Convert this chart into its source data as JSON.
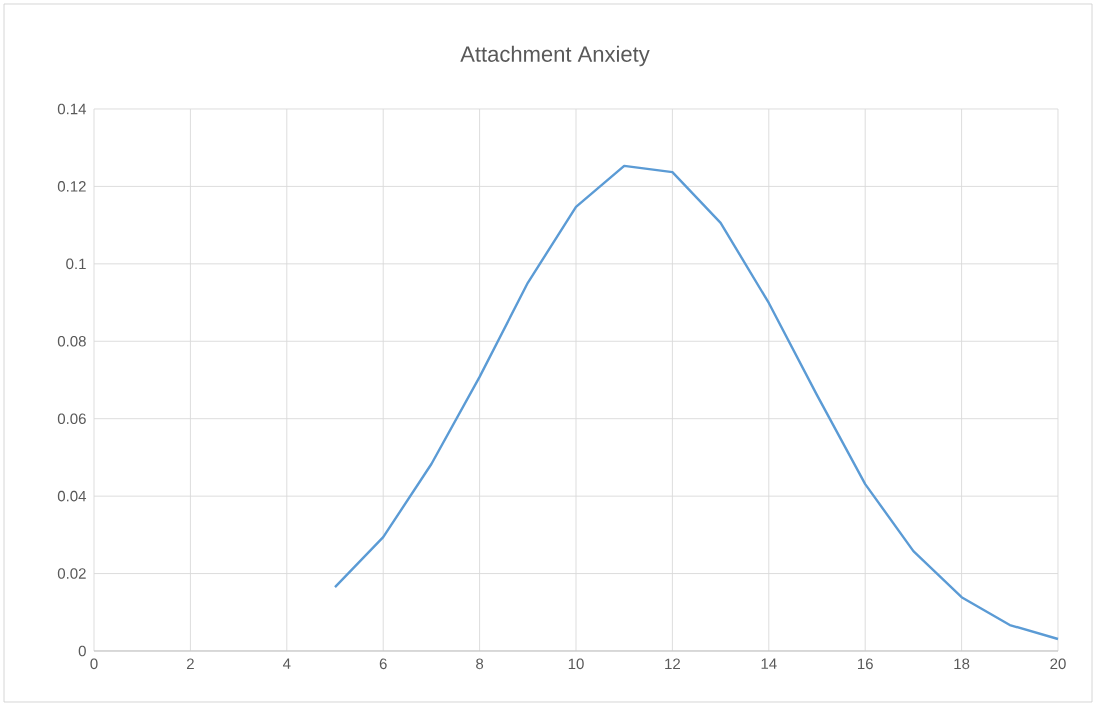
{
  "chart_data": {
    "type": "line",
    "title": "Attachment Anxiety",
    "x": [
      5,
      6,
      7,
      8,
      9,
      10,
      11,
      12,
      13,
      14,
      15,
      16,
      17,
      18,
      19,
      20
    ],
    "values": [
      0.0165,
      0.0294,
      0.0483,
      0.0708,
      0.0951,
      0.1147,
      0.1253,
      0.1237,
      0.1106,
      0.0899,
      0.0661,
      0.0431,
      0.0258,
      0.0139,
      0.0067,
      0.0031
    ],
    "color": "#5b9bd5",
    "xlim": [
      0,
      20
    ],
    "xticks": [
      0,
      2,
      4,
      6,
      8,
      10,
      12,
      14,
      16,
      18,
      20
    ],
    "ylim": [
      0,
      0.14
    ],
    "yticks": [
      0,
      0.02,
      0.04,
      0.06,
      0.08,
      0.1,
      0.12,
      0.14
    ],
    "grid": true
  }
}
